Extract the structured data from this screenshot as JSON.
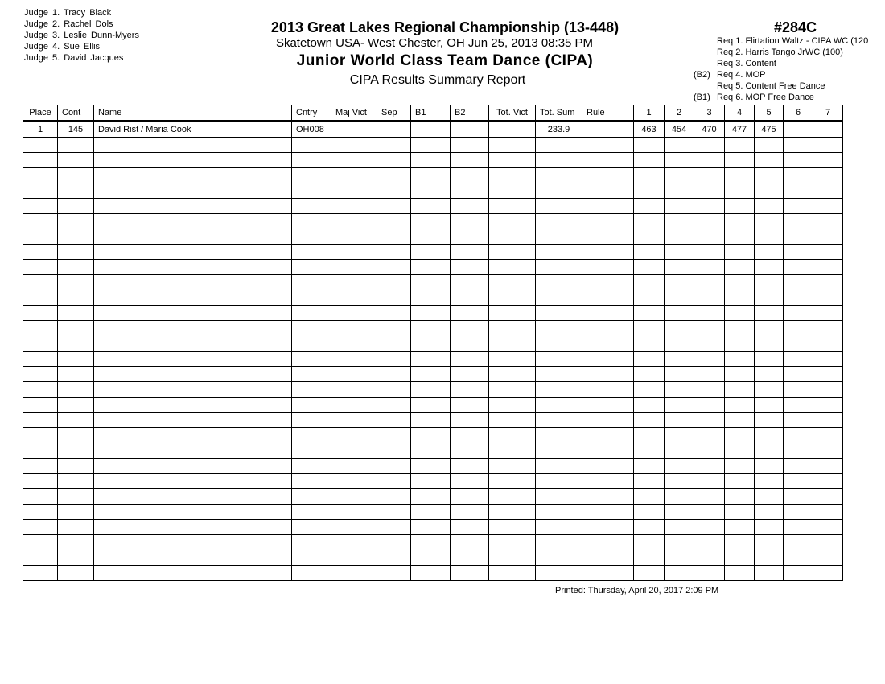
{
  "judges": [
    "Judge  1.  Tracy Black",
    "Judge  2.  Rachel  Dols",
    "Judge  3.  Leslie Dunn-Myers",
    "Judge  4.  Sue Ellis",
    "Judge  5.  David  Jacques"
  ],
  "header": {
    "competition": "2013 Great Lakes Regional Championship (13-448)",
    "venue_date": "Skatetown USA- West Chester, OH  Jun 25, 2013  08:35 PM",
    "event": "Junior World Class Team Dance   (CIPA)",
    "report": "CIPA Results Summary Report",
    "event_number": "#284C"
  },
  "requirements": [
    {
      "prefix": "",
      "label": "Req  1.  Flirtation Waltz - CIPA WC (120"
    },
    {
      "prefix": "",
      "label": "Req  2.  Harris Tango JrWC (100)"
    },
    {
      "prefix": "",
      "label": "Req  3.  Content"
    },
    {
      "prefix": "(B2)",
      "label": "Req  4.  MOP"
    },
    {
      "prefix": "",
      "label": "Req  5.  Content Free Dance"
    },
    {
      "prefix": "(B1)",
      "label": "Req  6.  MOP Free Dance"
    }
  ],
  "table": {
    "columns": [
      "Place",
      "Cont",
      "Name",
      "Cntry",
      "Maj Vict",
      "Sep",
      "B1",
      "B2",
      "Tot. Vict",
      "Tot. Sum",
      "Rule",
      "1",
      "2",
      "3",
      "4",
      "5",
      "6",
      "7"
    ],
    "rows": [
      [
        "1",
        "145",
        "David Rist / Maria Cook",
        "OH008",
        "",
        "",
        "",
        "",
        "",
        "233.9",
        "",
        "463",
        "454",
        "470",
        "477",
        "475",
        "",
        ""
      ]
    ]
  },
  "footer": {
    "printed": "Printed:  Thursday, April 20, 2017  2:09 PM"
  }
}
